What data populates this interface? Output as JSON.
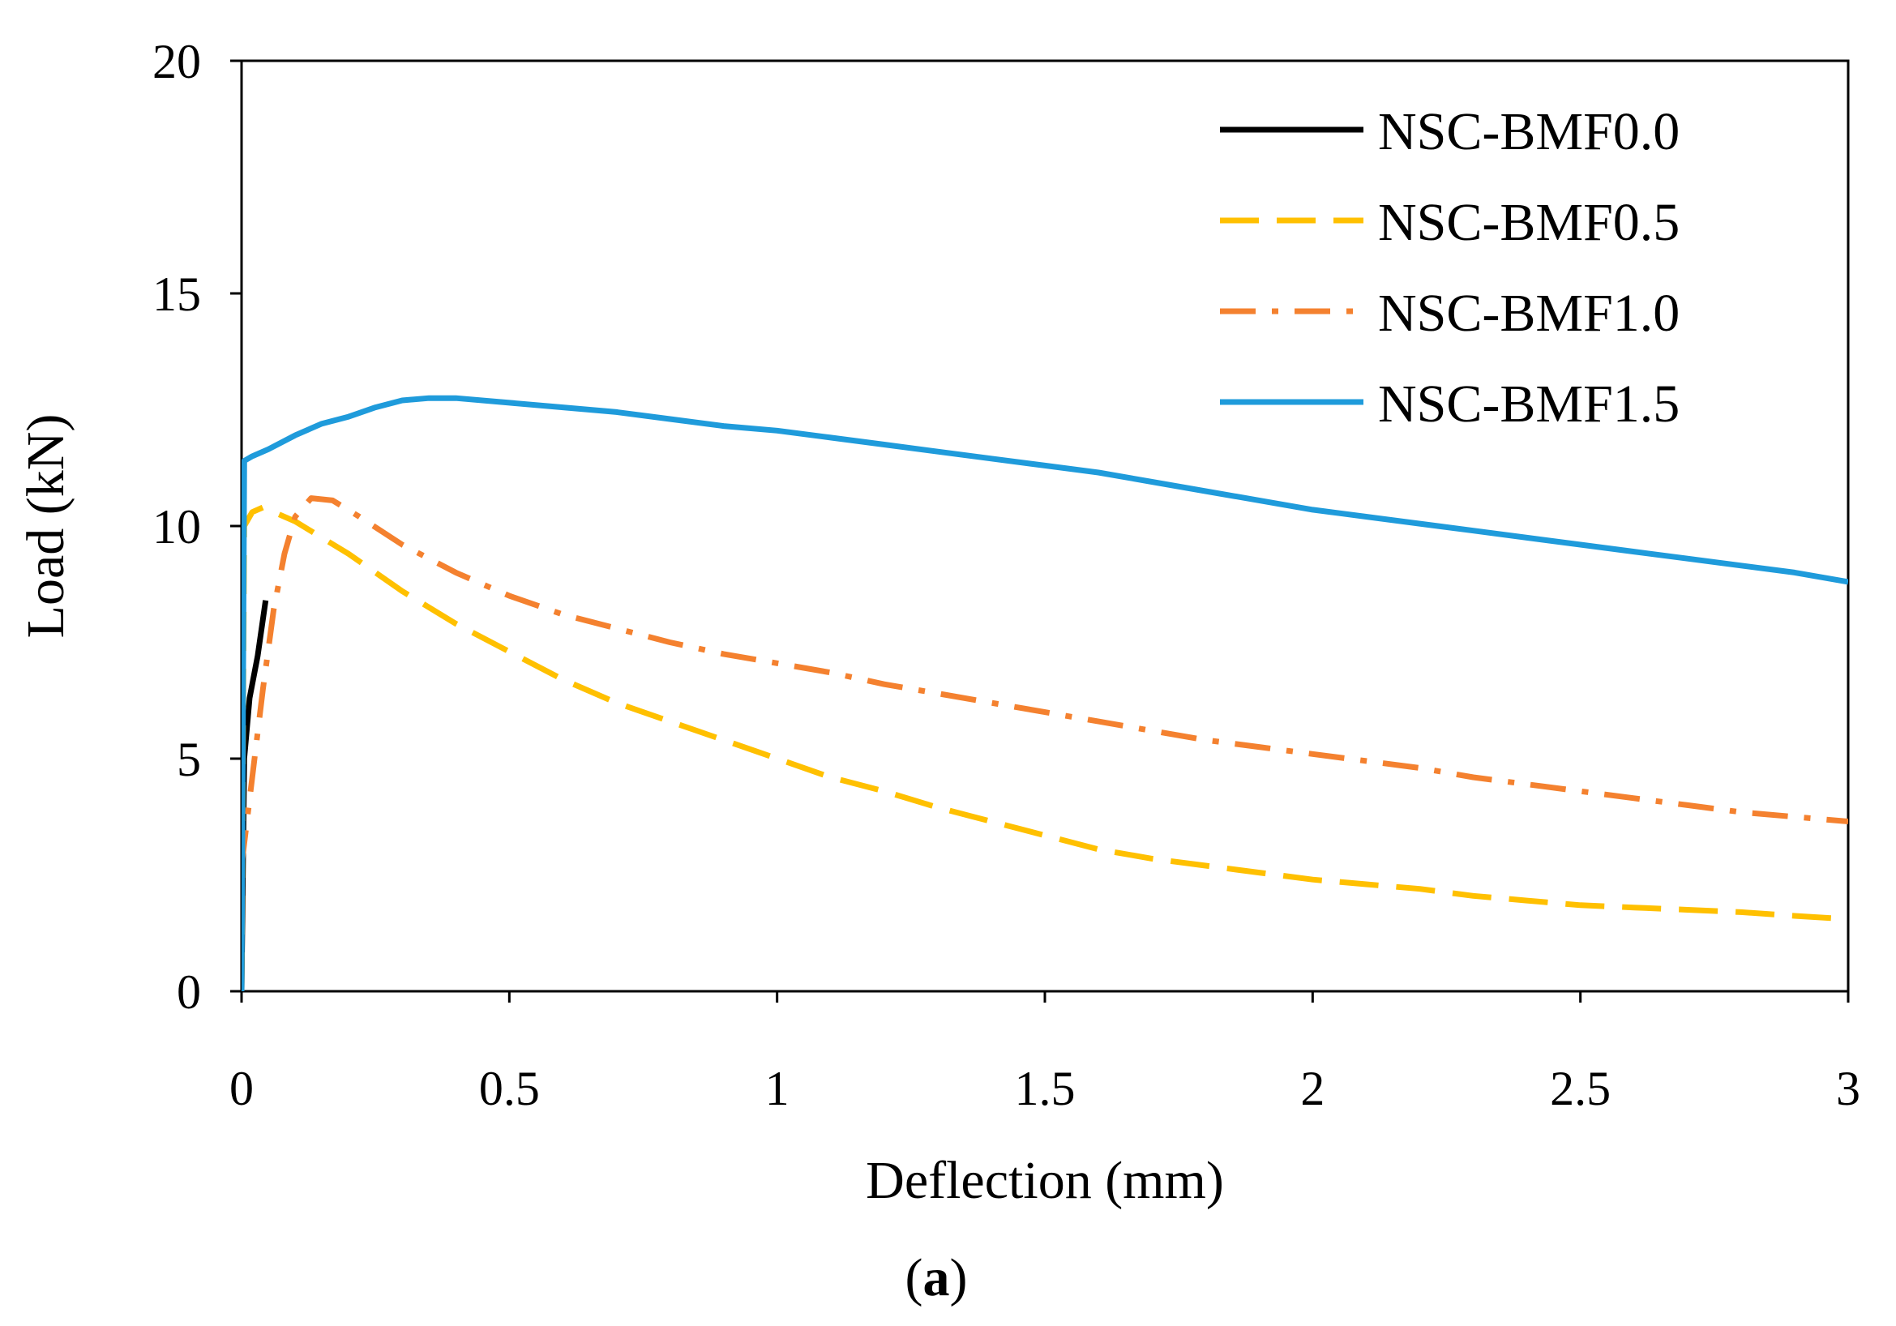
{
  "chart_data": {
    "type": "line",
    "title": "",
    "xlabel": "Deflection (mm)",
    "ylabel": "Load (kN)",
    "xlim": [
      0,
      3
    ],
    "ylim": [
      0,
      20
    ],
    "x_ticks": [
      0,
      0.5,
      1,
      1.5,
      2,
      2.5,
      3
    ],
    "x_tick_labels": [
      "0",
      "0.5",
      "1",
      "1.5",
      "2",
      "2.5",
      "3"
    ],
    "y_ticks": [
      0,
      5,
      10,
      15,
      20
    ],
    "y_tick_labels": [
      "0",
      "5",
      "10",
      "15",
      "20"
    ],
    "grid": false,
    "legend_position": "top-right",
    "panel_label": {
      "open": "(",
      "letter": "a",
      "close": ")"
    },
    "series": [
      {
        "name": "NSC-BMF0.0",
        "color": "#000000",
        "dash": "solid",
        "points": [
          [
            0,
            0
          ],
          [
            0.005,
            5.0
          ],
          [
            0.015,
            6.3
          ],
          [
            0.03,
            7.2
          ],
          [
            0.045,
            8.4
          ]
        ]
      },
      {
        "name": "NSC-BMF0.5",
        "color": "#FFC000",
        "dash": "dashed",
        "points": [
          [
            0,
            0
          ],
          [
            0.005,
            10.0
          ],
          [
            0.02,
            10.3
          ],
          [
            0.04,
            10.4
          ],
          [
            0.1,
            10.1
          ],
          [
            0.2,
            9.4
          ],
          [
            0.3,
            8.6
          ],
          [
            0.4,
            7.9
          ],
          [
            0.5,
            7.3
          ],
          [
            0.6,
            6.7
          ],
          [
            0.7,
            6.2
          ],
          [
            0.8,
            5.8
          ],
          [
            0.9,
            5.4
          ],
          [
            1.0,
            5.0
          ],
          [
            1.1,
            4.6
          ],
          [
            1.2,
            4.3
          ],
          [
            1.3,
            3.95
          ],
          [
            1.4,
            3.65
          ],
          [
            1.5,
            3.35
          ],
          [
            1.6,
            3.05
          ],
          [
            1.7,
            2.85
          ],
          [
            1.8,
            2.7
          ],
          [
            1.9,
            2.55
          ],
          [
            2.0,
            2.4
          ],
          [
            2.1,
            2.3
          ],
          [
            2.2,
            2.2
          ],
          [
            2.3,
            2.05
          ],
          [
            2.4,
            1.95
          ],
          [
            2.5,
            1.85
          ],
          [
            2.6,
            1.8
          ],
          [
            2.7,
            1.75
          ],
          [
            2.8,
            1.7
          ],
          [
            2.9,
            1.62
          ],
          [
            3.0,
            1.55
          ]
        ]
      },
      {
        "name": "NSC-BMF1.0",
        "color": "#F4812F",
        "dash": "dash-dot",
        "points": [
          [
            0.0,
            2.7
          ],
          [
            0.02,
            4.6
          ],
          [
            0.04,
            6.5
          ],
          [
            0.06,
            8.2
          ],
          [
            0.08,
            9.4
          ],
          [
            0.1,
            10.2
          ],
          [
            0.13,
            10.6
          ],
          [
            0.17,
            10.55
          ],
          [
            0.22,
            10.2
          ],
          [
            0.3,
            9.6
          ],
          [
            0.4,
            9.0
          ],
          [
            0.5,
            8.5
          ],
          [
            0.6,
            8.1
          ],
          [
            0.7,
            7.8
          ],
          [
            0.8,
            7.5
          ],
          [
            0.9,
            7.25
          ],
          [
            1.0,
            7.05
          ],
          [
            1.1,
            6.85
          ],
          [
            1.2,
            6.6
          ],
          [
            1.3,
            6.4
          ],
          [
            1.4,
            6.2
          ],
          [
            1.5,
            6.0
          ],
          [
            1.6,
            5.8
          ],
          [
            1.7,
            5.6
          ],
          [
            1.8,
            5.4
          ],
          [
            1.9,
            5.25
          ],
          [
            2.0,
            5.1
          ],
          [
            2.1,
            4.95
          ],
          [
            2.2,
            4.8
          ],
          [
            2.3,
            4.6
          ],
          [
            2.4,
            4.45
          ],
          [
            2.5,
            4.3
          ],
          [
            2.6,
            4.15
          ],
          [
            2.7,
            4.0
          ],
          [
            2.8,
            3.85
          ],
          [
            2.9,
            3.75
          ],
          [
            3.0,
            3.65
          ]
        ]
      },
      {
        "name": "NSC-BMF1.5",
        "color": "#1F9BDB",
        "dash": "solid",
        "points": [
          [
            0,
            0
          ],
          [
            0.005,
            11.4
          ],
          [
            0.02,
            11.5
          ],
          [
            0.05,
            11.65
          ],
          [
            0.1,
            11.95
          ],
          [
            0.15,
            12.2
          ],
          [
            0.2,
            12.35
          ],
          [
            0.25,
            12.55
          ],
          [
            0.3,
            12.7
          ],
          [
            0.35,
            12.75
          ],
          [
            0.4,
            12.75
          ],
          [
            0.5,
            12.65
          ],
          [
            0.6,
            12.55
          ],
          [
            0.7,
            12.45
          ],
          [
            0.8,
            12.3
          ],
          [
            0.9,
            12.15
          ],
          [
            1.0,
            12.05
          ],
          [
            1.1,
            11.9
          ],
          [
            1.2,
            11.75
          ],
          [
            1.3,
            11.6
          ],
          [
            1.4,
            11.45
          ],
          [
            1.5,
            11.3
          ],
          [
            1.6,
            11.15
          ],
          [
            1.7,
            10.95
          ],
          [
            1.8,
            10.75
          ],
          [
            1.9,
            10.55
          ],
          [
            2.0,
            10.35
          ],
          [
            2.1,
            10.2
          ],
          [
            2.2,
            10.05
          ],
          [
            2.3,
            9.9
          ],
          [
            2.4,
            9.75
          ],
          [
            2.5,
            9.6
          ],
          [
            2.6,
            9.45
          ],
          [
            2.7,
            9.3
          ],
          [
            2.8,
            9.15
          ],
          [
            2.9,
            9.0
          ],
          [
            3.0,
            8.8
          ]
        ]
      }
    ]
  }
}
